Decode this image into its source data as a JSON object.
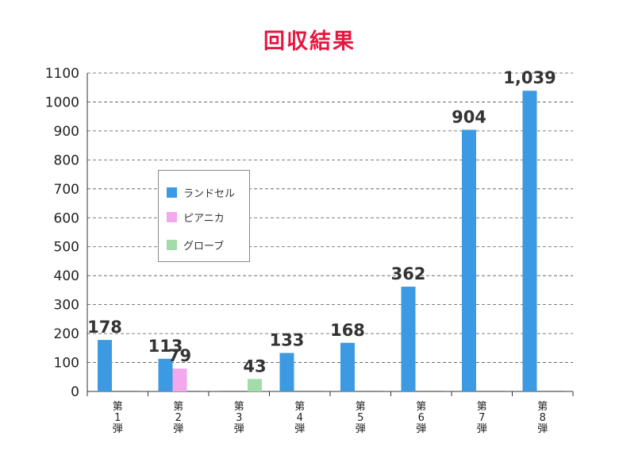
{
  "chart_data": {
    "type": "bar",
    "title": "回収結果",
    "ylim": [
      0,
      1100
    ],
    "yticks": [
      0,
      100,
      200,
      300,
      400,
      500,
      600,
      700,
      800,
      900,
      1000,
      1100
    ],
    "categories": [
      [
        "第",
        "1",
        "弾"
      ],
      [
        "第",
        "2",
        "弾"
      ],
      [
        "第",
        "3",
        "弾"
      ],
      [
        "第",
        "4",
        "弾"
      ],
      [
        "第",
        "5",
        "弾"
      ],
      [
        "第",
        "6",
        "弾"
      ],
      [
        "第",
        "7",
        "弾"
      ],
      [
        "第",
        "8",
        "弾"
      ]
    ],
    "series": [
      {
        "name": "ランドセル",
        "color": "#3b9ae1",
        "values": [
          178,
          113,
          0,
          133,
          168,
          362,
          904,
          1039
        ]
      },
      {
        "name": "ピアニカ",
        "color": "#f3a8ee",
        "values": [
          0,
          79,
          0,
          0,
          0,
          0,
          0,
          0
        ]
      },
      {
        "name": "グローブ",
        "color": "#a2dca8",
        "values": [
          0,
          0,
          43,
          0,
          0,
          0,
          0,
          0
        ]
      }
    ],
    "data_labels": [
      {
        "category": 0,
        "series": 0,
        "text": "178",
        "color": "#333333"
      },
      {
        "category": 1,
        "series": 0,
        "text": "113",
        "color": "#333333"
      },
      {
        "category": 1,
        "series": 1,
        "text": "79",
        "color": "#333333"
      },
      {
        "category": 2,
        "series": 2,
        "text": "43",
        "color": "#333333"
      },
      {
        "category": 3,
        "series": 0,
        "text": "133",
        "color": "#333333"
      },
      {
        "category": 4,
        "series": 0,
        "text": "168",
        "color": "#333333"
      },
      {
        "category": 5,
        "series": 0,
        "text": "362",
        "color": "#333333"
      },
      {
        "category": 6,
        "series": 0,
        "text": "904",
        "color": "#333333"
      },
      {
        "category": 7,
        "series": 0,
        "text": "1,039",
        "color": "#e5173f"
      }
    ],
    "legend": {
      "position": "inside-left",
      "entries": [
        "ランドセル",
        "ピアニカ",
        "グローブ"
      ]
    },
    "grid": true,
    "title_color": "#e5173f"
  }
}
